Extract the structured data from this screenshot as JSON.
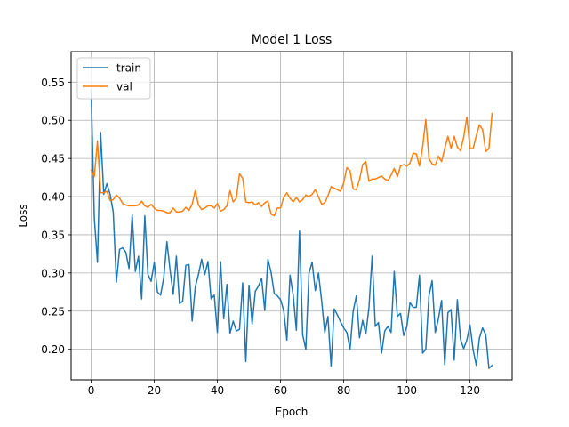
{
  "chart_data": {
    "type": "line",
    "title": "Model 1 Loss",
    "xlabel": "Epoch",
    "ylabel": "Loss",
    "xlim": [
      -6.35,
      133.35
    ],
    "ylim": [
      0.16,
      0.59
    ],
    "xticks": [
      0,
      20,
      40,
      60,
      80,
      100,
      120
    ],
    "yticks": [
      0.2,
      0.25,
      0.3,
      0.35,
      0.4,
      0.45,
      0.5,
      0.55
    ],
    "ytick_labels": [
      "0.20",
      "0.25",
      "0.30",
      "0.35",
      "0.40",
      "0.45",
      "0.50",
      "0.55"
    ],
    "grid": true,
    "legend_position": "top-left",
    "series": [
      {
        "name": "train",
        "color": "#1f77b4",
        "values": [
          0.54,
          0.372,
          0.314,
          0.484,
          0.403,
          0.417,
          0.403,
          0.38,
          0.288,
          0.331,
          0.333,
          0.327,
          0.306,
          0.376,
          0.302,
          0.322,
          0.266,
          0.375,
          0.298,
          0.289,
          0.314,
          0.275,
          0.271,
          0.294,
          0.341,
          0.304,
          0.272,
          0.322,
          0.26,
          0.263,
          0.31,
          0.311,
          0.237,
          0.282,
          0.298,
          0.318,
          0.298,
          0.315,
          0.266,
          0.271,
          0.222,
          0.315,
          0.24,
          0.285,
          0.221,
          0.237,
          0.224,
          0.226,
          0.287,
          0.184,
          0.284,
          0.233,
          0.276,
          0.283,
          0.293,
          0.251,
          0.318,
          0.301,
          0.273,
          0.27,
          0.265,
          0.251,
          0.212,
          0.297,
          0.271,
          0.225,
          0.355,
          0.219,
          0.2,
          0.3,
          0.314,
          0.277,
          0.3,
          0.264,
          0.222,
          0.243,
          0.178,
          0.253,
          0.245,
          0.236,
          0.228,
          0.222,
          0.2,
          0.25,
          0.27,
          0.215,
          0.238,
          0.22,
          0.255,
          0.322,
          0.23,
          0.235,
          0.195,
          0.224,
          0.23,
          0.222,
          0.302,
          0.243,
          0.247,
          0.218,
          0.23,
          0.261,
          0.255,
          0.255,
          0.297,
          0.195,
          0.2,
          0.27,
          0.29,
          0.222,
          0.24,
          0.264,
          0.18,
          0.248,
          0.252,
          0.186,
          0.265,
          0.213,
          0.201,
          0.212,
          0.232,
          0.199,
          0.179,
          0.215,
          0.228,
          0.219,
          0.175,
          0.179
        ]
      },
      {
        "name": "val",
        "color": "#ff7f0e",
        "values": [
          0.435,
          0.426,
          0.473,
          0.405,
          0.405,
          0.407,
          0.395,
          0.396,
          0.402,
          0.398,
          0.391,
          0.389,
          0.388,
          0.388,
          0.388,
          0.389,
          0.394,
          0.388,
          0.386,
          0.39,
          0.385,
          0.382,
          0.382,
          0.381,
          0.379,
          0.379,
          0.385,
          0.38,
          0.38,
          0.381,
          0.386,
          0.382,
          0.39,
          0.408,
          0.389,
          0.383,
          0.385,
          0.388,
          0.388,
          0.385,
          0.391,
          0.381,
          0.383,
          0.388,
          0.408,
          0.393,
          0.398,
          0.43,
          0.424,
          0.393,
          0.392,
          0.393,
          0.389,
          0.392,
          0.387,
          0.392,
          0.394,
          0.377,
          0.375,
          0.385,
          0.385,
          0.399,
          0.405,
          0.398,
          0.393,
          0.399,
          0.393,
          0.396,
          0.402,
          0.4,
          0.403,
          0.409,
          0.4,
          0.39,
          0.392,
          0.401,
          0.413,
          0.411,
          0.409,
          0.407,
          0.418,
          0.438,
          0.434,
          0.41,
          0.409,
          0.422,
          0.442,
          0.446,
          0.42,
          0.423,
          0.423,
          0.425,
          0.427,
          0.423,
          0.421,
          0.428,
          0.437,
          0.426,
          0.44,
          0.442,
          0.44,
          0.444,
          0.457,
          0.456,
          0.44,
          0.465,
          0.501,
          0.45,
          0.443,
          0.441,
          0.453,
          0.446,
          0.463,
          0.479,
          0.463,
          0.479,
          0.465,
          0.46,
          0.478,
          0.504,
          0.463,
          0.463,
          0.48,
          0.494,
          0.488,
          0.459,
          0.463,
          0.509
        ]
      }
    ]
  }
}
